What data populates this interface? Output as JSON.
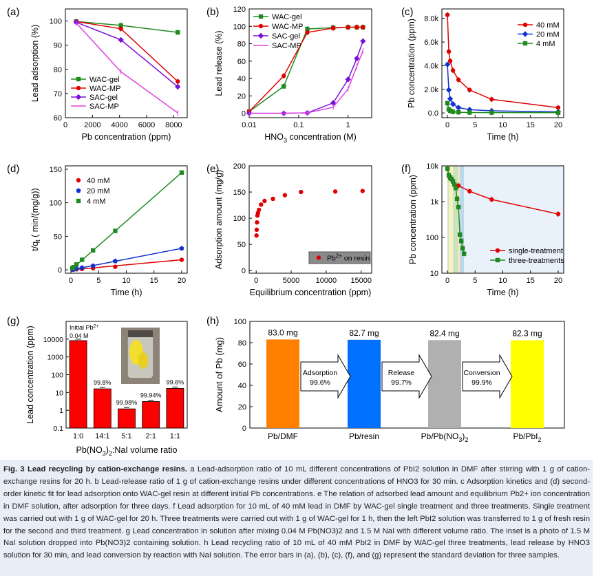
{
  "panels": {
    "a": {
      "label": "(a)",
      "chart_data": {
        "type": "line",
        "xlabel": "Pb concentration (ppm)",
        "ylabel": "Lead adsorption (%)",
        "xlim": [
          0,
          9000
        ],
        "ylim": [
          60,
          105
        ],
        "xticks": [
          "0",
          "2000",
          "4000",
          "6000",
          "8000"
        ],
        "yticks": [
          "60",
          "70",
          "80",
          "90",
          "100"
        ],
        "legend": "bottom-left",
        "series": [
          {
            "name": "WAC-gel",
            "color": "#1f8a1f",
            "marker": "square",
            "x": [
              800,
              4100,
              8300
            ],
            "y": [
              99.8,
              98.2,
              95.3
            ]
          },
          {
            "name": "WAC-MP",
            "color": "#e00000",
            "marker": "circle",
            "x": [
              800,
              4100,
              8300
            ],
            "y": [
              99.8,
              96.8,
              75.0
            ]
          },
          {
            "name": "SAC-gel",
            "color": "#7a10d8",
            "marker": "diamond",
            "x": [
              800,
              4100,
              8300
            ],
            "y": [
              99.5,
              92.2,
              72.8
            ]
          },
          {
            "name": "SAC-MP",
            "color": "#e040e0",
            "marker": "none",
            "x": [
              800,
              4100,
              8300
            ],
            "y": [
              99.2,
              79.0,
              62.0
            ]
          }
        ]
      }
    },
    "b": {
      "label": "(b)",
      "chart_data": {
        "type": "line",
        "xscale": "log",
        "xlabel": "HNO3 concentration (M)",
        "ylabel": "Lead release (%)",
        "xlim": [
          0.01,
          3
        ],
        "ylim": [
          -5,
          120
        ],
        "xticks": [
          "0.01",
          "0.1",
          "1"
        ],
        "yticks": [
          "0",
          "20",
          "40",
          "60",
          "80",
          "100",
          "120"
        ],
        "legend": "top-left",
        "series": [
          {
            "name": "WAC-gel",
            "color": "#1f8a1f",
            "marker": "square",
            "x": [
              0.01,
              0.05,
              0.15,
              0.5,
              1,
              1.5,
              2
            ],
            "y": [
              2,
              31,
              97,
              98.5,
              99,
              99,
              99
            ]
          },
          {
            "name": "WAC-MP",
            "color": "#e00000",
            "marker": "circle",
            "x": [
              0.01,
              0.05,
              0.15,
              0.5,
              1,
              1.5,
              2
            ],
            "y": [
              2,
              43,
              93,
              98,
              99,
              99,
              99
            ]
          },
          {
            "name": "SAC-gel",
            "color": "#7a10d8",
            "marker": "diamond",
            "x": [
              0.01,
              0.05,
              0.15,
              0.5,
              1,
              1.5,
              2
            ],
            "y": [
              0,
              0,
              0.5,
              12,
              39,
              63,
              83
            ]
          },
          {
            "name": "SAC-MP",
            "color": "#e040e0",
            "marker": "none",
            "x": [
              0.01,
              0.05,
              0.15,
              0.5,
              1,
              1.5,
              2
            ],
            "y": [
              0,
              0,
              0.5,
              7,
              28,
              54,
              72
            ]
          }
        ]
      }
    },
    "c": {
      "label": "(c)",
      "chart_data": {
        "type": "line",
        "xlabel": "Time (h)",
        "ylabel": "Pb concentration (ppm)",
        "xlim": [
          -1,
          21
        ],
        "ylim": [
          -400,
          8800
        ],
        "xticks": [
          "0",
          "5",
          "10",
          "15",
          "20"
        ],
        "yticks": [
          "0.0",
          "2.0k",
          "4.0k",
          "6.0k",
          "8.0k"
        ],
        "legend": "top-right",
        "series": [
          {
            "name": "40 mM",
            "color": "#e00000",
            "marker": "circle",
            "x": [
              0,
              0.25,
              0.5,
              1,
              2,
              4,
              8,
              20
            ],
            "y": [
              8300,
              5200,
              4400,
              3600,
              2800,
              1950,
              1150,
              450
            ]
          },
          {
            "name": "20 mM",
            "color": "#1030d0",
            "marker": "diamond",
            "x": [
              0,
              0.25,
              0.5,
              1,
              2,
              4,
              8,
              20
            ],
            "y": [
              4100,
              1950,
              1200,
              750,
              450,
              280,
              180,
              90
            ]
          },
          {
            "name": "4 mM",
            "color": "#1f8a1f",
            "marker": "square",
            "x": [
              0,
              0.25,
              0.5,
              1,
              2,
              4,
              8,
              20
            ],
            "y": [
              820,
              300,
              180,
              100,
              60,
              40,
              30,
              25
            ]
          }
        ]
      }
    },
    "d": {
      "label": "(d)",
      "chart_data": {
        "type": "scatter",
        "xlabel": "Time (h)",
        "ylabel": "t/qt (min/(mg/g))",
        "xlim": [
          -1,
          21
        ],
        "ylim": [
          -5,
          155
        ],
        "xticks": [
          "0",
          "5",
          "10",
          "15",
          "20"
        ],
        "yticks": [
          "0",
          "50",
          "100",
          "150"
        ],
        "legend": "top-left",
        "series": [
          {
            "name": "40 mM",
            "color": "#e00000",
            "marker": "circle",
            "x": [
              0.25,
              0.5,
              1,
              2,
              4,
              8,
              20
            ],
            "y": [
              0.3,
              0.5,
              0.8,
              1.3,
              2.4,
              4.6,
              15
            ]
          },
          {
            "name": "20 mM",
            "color": "#1030d0",
            "marker": "pentagon",
            "x": [
              0.25,
              0.5,
              1,
              2,
              4,
              8,
              20
            ],
            "y": [
              0.5,
              1,
              1.8,
              3.2,
              6,
              13,
              32
            ]
          },
          {
            "name": "4 mM",
            "color": "#1f8a1f",
            "marker": "square",
            "x": [
              0.25,
              0.5,
              1,
              2,
              4,
              8,
              20
            ],
            "y": [
              2.5,
              4,
              8,
              15,
              29,
              58,
              145
            ]
          }
        ]
      }
    },
    "e": {
      "label": "(e)",
      "chart_data": {
        "type": "scatter",
        "xlabel": "Equilibrium concentration (ppm)",
        "ylabel": "Adsorption amount (mg/g)",
        "xlim": [
          -1000,
          16500
        ],
        "ylim": [
          -5,
          200
        ],
        "xticks": [
          "0",
          "5000",
          "10000",
          "15000"
        ],
        "yticks": [
          "0",
          "50",
          "100",
          "150",
          "200"
        ],
        "legend": "bottom-right",
        "series": [
          {
            "name": "Pb2+ on resin",
            "color": "#e00000",
            "marker": "circle",
            "x": [
              50,
              80,
              120,
              180,
              260,
              400,
              700,
              1200,
              2400,
              4100,
              6400,
              11300,
              15200
            ],
            "y": [
              67,
              78,
              92,
              105,
              110,
              116,
              126,
              133,
              137,
              144,
              150,
              151,
              152
            ]
          }
        ]
      }
    },
    "f": {
      "label": "(f)",
      "chart_data": {
        "type": "line",
        "yscale": "log",
        "xlabel": "Time (h)",
        "ylabel": "Pb concentration (ppm)",
        "xlim": [
          -1,
          21
        ],
        "ylim": [
          10,
          10000
        ],
        "xticks": [
          "0",
          "5",
          "10",
          "15",
          "20"
        ],
        "yticks": [
          "10",
          "100",
          "1k",
          "10k"
        ],
        "legend": "bottom-right",
        "series": [
          {
            "name": "single-treatment",
            "color": "#e00000",
            "marker": "circle",
            "x": [
              0,
              0.25,
              0.5,
              1,
              2,
              4,
              8,
              20
            ],
            "y": [
              8300,
              5200,
              4400,
              3600,
              2800,
              1950,
              1150,
              450
            ]
          },
          {
            "name": "three-treatments",
            "color": "#1f8a1f",
            "marker": "square",
            "x": [
              0,
              0.25,
              0.5,
              0.75,
              1,
              1.25,
              1.5,
              1.75,
              2,
              2.25,
              2.5,
              2.75,
              3
            ],
            "y": [
              8300,
              5500,
              4800,
              4300,
              3700,
              3000,
              2400,
              1200,
              700,
              120,
              80,
              50,
              35
            ]
          }
        ]
      }
    },
    "g": {
      "label": "(g)",
      "inset_note": "Initial Pb2+ 0.04 M",
      "chart_data": {
        "type": "bar",
        "yscale": "log",
        "xlabel": "Pb(NO3)2:NaI volume ratio",
        "ylabel": "Lead concentration (ppm)",
        "ylim": [
          0.1,
          100000
        ],
        "yticks": [
          "0.1",
          "1",
          "10",
          "100",
          "1000",
          "10000"
        ],
        "categories": [
          "1:0",
          "14:1",
          "5:1",
          "2:1",
          "1:1"
        ],
        "values": [
          8300,
          16,
          1.2,
          3.1,
          17
        ],
        "bar_labels": [
          "",
          "99.8%",
          "99.98%",
          "99.94%",
          "99.6%"
        ],
        "color": "#ff0000"
      }
    },
    "h": {
      "label": "(h)",
      "chart_data": {
        "type": "bar",
        "ylabel": "Amount of Pb (mg)",
        "ylim": [
          0,
          100
        ],
        "yticks": [
          "0",
          "20",
          "40",
          "60",
          "80",
          "100"
        ],
        "categories": [
          "Pb/DMF",
          "Pb/resin",
          "Pb/Pb(NO3)2",
          "Pb/PbI2"
        ],
        "values": [
          83.0,
          82.7,
          82.4,
          82.3
        ],
        "bar_labels": [
          "83.0 mg",
          "82.7 mg",
          "82.4 mg",
          "82.3 mg"
        ],
        "colors": [
          "#ff8000",
          "#0070ff",
          "#b0b0b0",
          "#ffff00"
        ],
        "arrows": [
          {
            "step": "Adsorption",
            "ratio": "99.6%"
          },
          {
            "step": "Release",
            "ratio": "99.7%"
          },
          {
            "step": "Conversion",
            "ratio": "99.9%"
          }
        ]
      }
    }
  },
  "caption": {
    "title": "Fig. 3 Lead recycling by cation-exchange resins.",
    "body": " a Lead-adsorption ratio of 10 mL different concentrations of PbI2 solution in DMF after stirring with 1 g of cation-exchange resins for 20 h. b Lead-release ratio of 1 g of cation-exchange resins under different concentrations of HNO3 for 30 min. c Adsorption kinetics and (d) second-order kinetic fit for lead adsorption onto WAC-gel resin at different initial Pb concentrations. e The relation of adsorbed lead amount and equilibrium Pb2+ ion concentration in DMF solution, after adsorption for three days. f Lead adsorption for 10 mL of 40 mM lead in DMF by WAC-gel single treatment and three treatments. Single treatment was carried out with 1 g of WAC-gel for 20 h. Three treatments were carried out with 1 g of WAC-gel for 1 h, then the left PbI2 solution was transferred to 1 g of fresh resin for the second and third treatment. g Lead concentration in solution after mixing 0.04 M Pb(NO3)2 and 1.5 M NaI with different volume ratio. The inset is a photo of 1.5 M NaI solution dropped into Pb(NO3)2 containing solution. h Lead recycling ratio of 10 mL of 40 mM PbI2 in DMF by WAC-gel three treatments, lead release by HNO3 solution for 30 min, and lead conversion by reaction with NaI solution. The error bars in (a), (b), (c), (f), and (g) represent the standard deviation for three samples."
  }
}
